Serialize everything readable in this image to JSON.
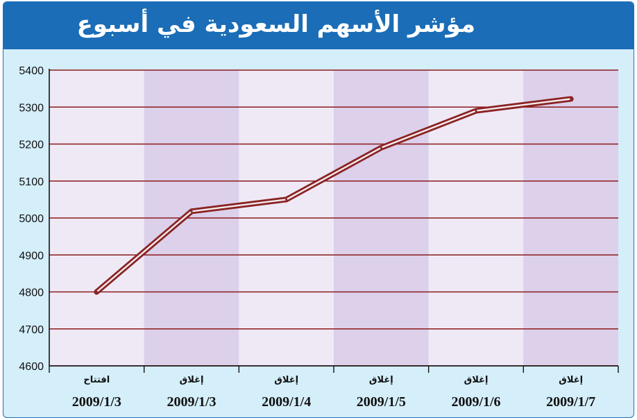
{
  "title": "مؤشر الأسهم السعودية في أسبوع",
  "colors": {
    "title_bar": "#1a6db6",
    "background": "#d4eefa",
    "band_light": "#efe9f6",
    "band_dark": "#dcd0eb",
    "grid": "#8b1a1a",
    "line": "#8b2323"
  },
  "chart_data": {
    "type": "line",
    "title": "مؤشر الأسهم السعودية في أسبوع",
    "xlabel": "",
    "ylabel": "",
    "ylim": [
      4600,
      5400
    ],
    "yticks": [
      4600,
      4700,
      4800,
      4900,
      5000,
      5100,
      5200,
      5300,
      5400
    ],
    "grid": true,
    "categories": [
      {
        "label": "افتتاح",
        "date": "2009/1/3"
      },
      {
        "label": "إغلاق",
        "date": "2009/1/3"
      },
      {
        "label": "إغلاق",
        "date": "2009/1/4"
      },
      {
        "label": "إغلاق",
        "date": "2009/1/5"
      },
      {
        "label": "إغلاق",
        "date": "2009/1/6"
      },
      {
        "label": "إغلاق",
        "date": "2009/1/7"
      }
    ],
    "series": [
      {
        "values": [
          4800,
          5018,
          5050,
          5190,
          5290,
          5322
        ]
      }
    ]
  }
}
